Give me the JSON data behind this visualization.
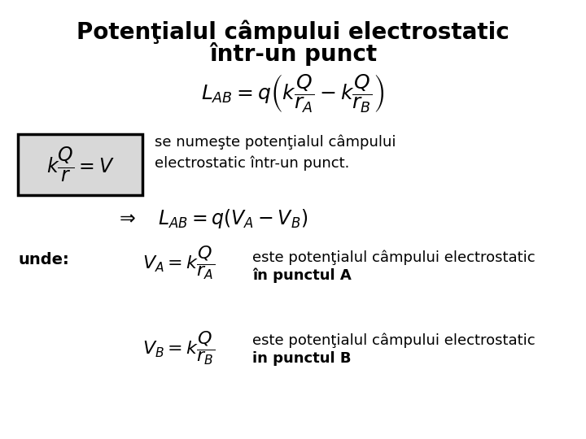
{
  "background_color": "#ffffff",
  "title_line1": "Potenţialul câmpului electrostatic",
  "title_line2": "într-un punct",
  "formula1": "$L_{AB} = q\\left(k\\dfrac{Q}{r_A} - k\\dfrac{Q}{r_B}\\right)$",
  "box_formula": "$k\\dfrac{Q}{r} = V$",
  "box_text_line1": "se numeşte potenţialul câmpului",
  "box_text_line2": "electrostatic într-un punct.",
  "formula2": "$\\Rightarrow \\quad L_{AB} = q(V_A - V_B)$",
  "unde_label": "unde:",
  "formula3": "$V_A = k\\dfrac{Q}{r_A}$",
  "desc3_line1": "este potenţialul câmpului electrostatic",
  "desc3_line2": "în punctul A",
  "formula4": "$V_B = k\\dfrac{Q}{r_B}$",
  "desc4_line1": "este potenţialul câmpului electrostatic",
  "desc4_line2": "in punctul B",
  "title_fontsize": 20,
  "body_fontsize": 13,
  "formula_fontsize": 15
}
